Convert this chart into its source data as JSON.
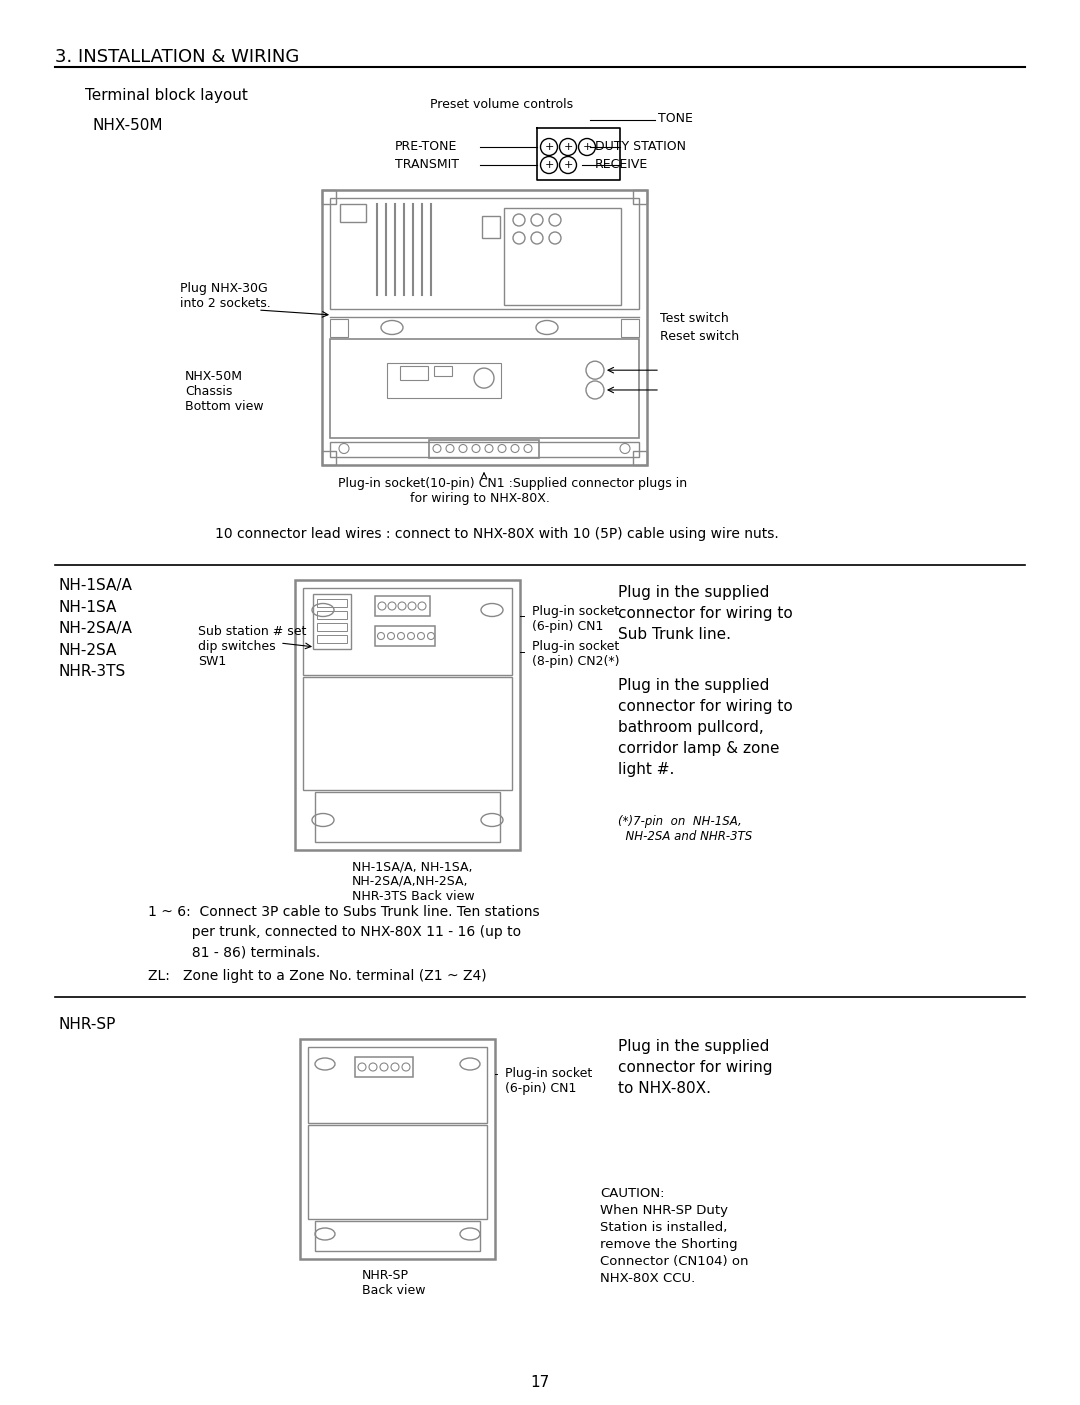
{
  "bg_color": "#ffffff",
  "section1_title": "3. INSTALLATION & WIRING",
  "subsection1": "Terminal block layout",
  "nhx50m_label": "NHX-50M",
  "preset_label": "Preset volume controls",
  "tone_label": "TONE",
  "pretone_label": "PRE-TONE",
  "dutystation_label": "DUTY STATION",
  "transmit_label": "TRANSMIT",
  "receive_label": "RECEIVE",
  "plug_nhx30g_label": "Plug NHX-30G\ninto 2 sockets.",
  "chassis_label": "NHX-50M\nChassis\nBottom view",
  "test_switch_label": "Test switch",
  "reset_switch_label": "Reset switch",
  "plugin_socket_label": "Plug-in socket(10-pin) CN1 :Supplied connector plugs in\n                  for wiring to NHX-80X.",
  "connector_lead_label": "10 connector lead wires : connect to NHX-80X with 10 (5P) cable using wire nuts.",
  "nh_models_label": "NH-1SA/A\nNH-1SA\nNH-2SA/A\nNH-2SA\nNHR-3TS",
  "substation_label": "Sub station # set\ndip switches\nSW1",
  "plugin6pin_label": "Plug-in socket\n(6-pin) CN1",
  "plugin8pin_label": "Plug-in socket\n(8-pin) CN2(*)",
  "nh_backview_label": "NH-1SA/A, NH-1SA,\nNH-2SA/A,NH-2SA,\nNHR-3TS Back view",
  "plug_sub_trunk_label": "Plug in the supplied\nconnector for wiring to\nSub Trunk line.",
  "plug_bathroom_label": "Plug in the supplied\nconnector for wiring to\nbathroom pullcord,\ncorridor lamp & zone\nlight #.",
  "footnote_label": "(*)7-pin  on  NH-1SA,\n  NH-2SA and NHR-3TS",
  "instructions_1": "1 ~ 6:  Connect 3P cable to Subs Trunk line. Ten stations",
  "instructions_2": "          per trunk, connected to NHX-80X 11 - 16 (up to",
  "instructions_3": "          81 - 86) terminals.",
  "instructions_4": "ZL:   Zone light to a Zone No. terminal (Z1 ~ Z4)",
  "nhrsp_label": "NHR-SP",
  "plugin6pin_nhrsp_label": "Plug-in socket\n(6-pin) CN1",
  "nhrsp_backview_label": "NHR-SP\nBack view",
  "plug_nhrsp_label": "Plug in the supplied\nconnector for wiring\nto NHX-80X.",
  "caution_label": "CAUTION:\nWhen NHR-SP Duty\nStation is installed,\nremove the Shorting\nConnector (CN104) on\nNHX-80X CCU.",
  "page_number": "17"
}
